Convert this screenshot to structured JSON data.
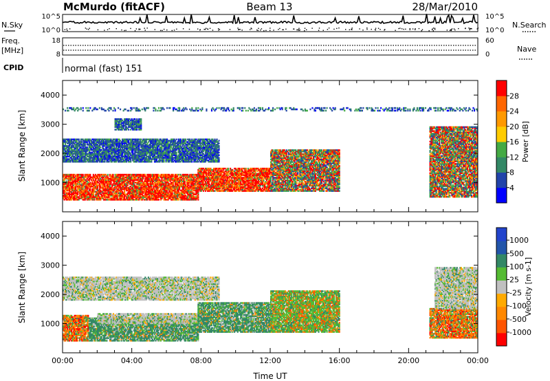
{
  "header": {
    "station": "McMurdo (fitACF)",
    "beam": "Beam 13",
    "date": "28/Mar/2010"
  },
  "noise_panel": {
    "left_label": "N.Sky",
    "left_ticks": [
      "10^5",
      "10^0"
    ],
    "right_label": "N.Search",
    "right_ticks": [
      "10^5",
      "10^0"
    ]
  },
  "freq_panel": {
    "left_label_1": "Freq.",
    "left_label_2": "[MHz]",
    "left_ticks": [
      "18",
      "8"
    ],
    "right_label": "Nave",
    "right_ticks": [
      "60",
      "0"
    ]
  },
  "cpid_panel": {
    "label": "CPID",
    "mode_text": "normal (fast) 151"
  },
  "colors": {
    "power_scale": [
      "#0000ff",
      "#2244aa",
      "#338866",
      "#44aa44",
      "#ffcc00",
      "#ff9900",
      "#ff6600",
      "#ff0000"
    ],
    "velocity_scale": [
      "#2244cc",
      "#2255aa",
      "#338866",
      "#55bb33",
      "#c0c0c0",
      "#ffaa00",
      "#ff8800",
      "#ff5500",
      "#ff0000"
    ]
  },
  "chart_data": [
    {
      "type": "heatmap",
      "name": "power",
      "ylabel": "Slant Range [km]",
      "yticks": [
        "1000",
        "2000",
        "3000",
        "4000"
      ],
      "ylim": [
        0,
        4500
      ],
      "xlim": [
        0,
        24
      ],
      "colorbar": {
        "label": "Power [dB]",
        "ticks": [
          "4",
          "8",
          "12",
          "16",
          "20",
          "24",
          "28"
        ],
        "range": [
          0,
          32
        ]
      },
      "echo_bands": [
        {
          "t0": 0.0,
          "t1": 7.8,
          "r0": 400,
          "r1": 1300,
          "level": "high"
        },
        {
          "t0": 7.8,
          "t1": 12.0,
          "r0": 700,
          "r1": 1500,
          "level": "high"
        },
        {
          "t0": 12.0,
          "t1": 16.0,
          "r0": 700,
          "r1": 2100,
          "level": "mid"
        },
        {
          "t0": 0.0,
          "t1": 9.0,
          "r0": 1700,
          "r1": 2500,
          "level": "low"
        },
        {
          "t0": 3.0,
          "t1": 4.5,
          "r0": 2800,
          "r1": 3200,
          "level": "low"
        },
        {
          "t0": 21.2,
          "t1": 24.0,
          "r0": 500,
          "r1": 2900,
          "level": "mid"
        },
        {
          "t0": 0.0,
          "t1": 24.0,
          "r0": 3450,
          "r1": 3550,
          "level": "low"
        }
      ]
    },
    {
      "type": "heatmap",
      "name": "velocity",
      "ylabel": "Slant Range [km]",
      "yticks": [
        "1000",
        "2000",
        "3000",
        "4000"
      ],
      "ylim": [
        0,
        4500
      ],
      "xlabel": "Time UT",
      "xticks": [
        "00:00",
        "04:00",
        "08:00",
        "12:00",
        "16:00",
        "20:00",
        "00:00"
      ],
      "xlim": [
        0,
        24
      ],
      "colorbar": {
        "label": "Velocity [m s-1]",
        "ticks": [
          "1000",
          "500",
          "100",
          "25",
          "-25",
          "-100",
          "-500",
          "-1000"
        ]
      },
      "echo_bands": [
        {
          "t0": 0.0,
          "t1": 1.5,
          "r0": 400,
          "r1": 1300,
          "level": "neg"
        },
        {
          "t0": 1.5,
          "t1": 7.8,
          "r0": 400,
          "r1": 1200,
          "level": "pos"
        },
        {
          "t0": 2.0,
          "t1": 8.5,
          "r0": 1000,
          "r1": 1350,
          "level": "zero"
        },
        {
          "t0": 7.8,
          "t1": 12.0,
          "r0": 700,
          "r1": 1700,
          "level": "pos"
        },
        {
          "t0": 12.0,
          "t1": 16.0,
          "r0": 700,
          "r1": 2100,
          "level": "weakpos"
        },
        {
          "t0": 0.0,
          "t1": 9.0,
          "r0": 1800,
          "r1": 2600,
          "level": "zero"
        },
        {
          "t0": 21.2,
          "t1": 24.0,
          "r0": 500,
          "r1": 1500,
          "level": "neg"
        },
        {
          "t0": 21.5,
          "t1": 24.0,
          "r0": 1500,
          "r1": 2900,
          "level": "zero"
        }
      ]
    }
  ]
}
